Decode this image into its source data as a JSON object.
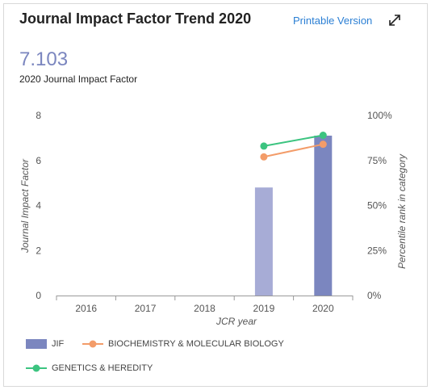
{
  "header": {
    "title": "Journal Impact Factor Trend 2020",
    "printable_label": "Printable Version"
  },
  "summary": {
    "value": "7.103",
    "label": "2020 Journal Impact Factor"
  },
  "colors": {
    "jif_2019": "#a7acd6",
    "jif_2020": "#7b86bf",
    "biochem": "#f39c69",
    "genetics": "#3cc480",
    "link": "#2b7fd4"
  },
  "chart_data": {
    "type": "bar",
    "categories": [
      "2016",
      "2017",
      "2018",
      "2019",
      "2020"
    ],
    "series": [
      {
        "name": "JIF",
        "axis": "left",
        "type": "bar",
        "values": [
          null,
          null,
          null,
          4.8,
          7.103
        ]
      },
      {
        "name": "BIOCHEMISTRY & MOLECULAR BIOLOGY",
        "axis": "right",
        "type": "line",
        "values": [
          null,
          null,
          null,
          0.77,
          0.84
        ]
      },
      {
        "name": "GENETICS & HEREDITY",
        "axis": "right",
        "type": "line",
        "values": [
          null,
          null,
          null,
          0.83,
          0.89
        ]
      }
    ],
    "xlabel": "JCR year",
    "ylabel": "Journal Impact Factor",
    "ylabel_right": "Percentile rank in category",
    "ylim": [
      0,
      8
    ],
    "ylim_right": [
      0,
      1
    ],
    "yticks": [
      "0",
      "2",
      "4",
      "6",
      "8"
    ],
    "yticks_right": [
      "0%",
      "25%",
      "50%",
      "75%",
      "100%"
    ],
    "legend_position": "bottom-left",
    "grid": false
  }
}
